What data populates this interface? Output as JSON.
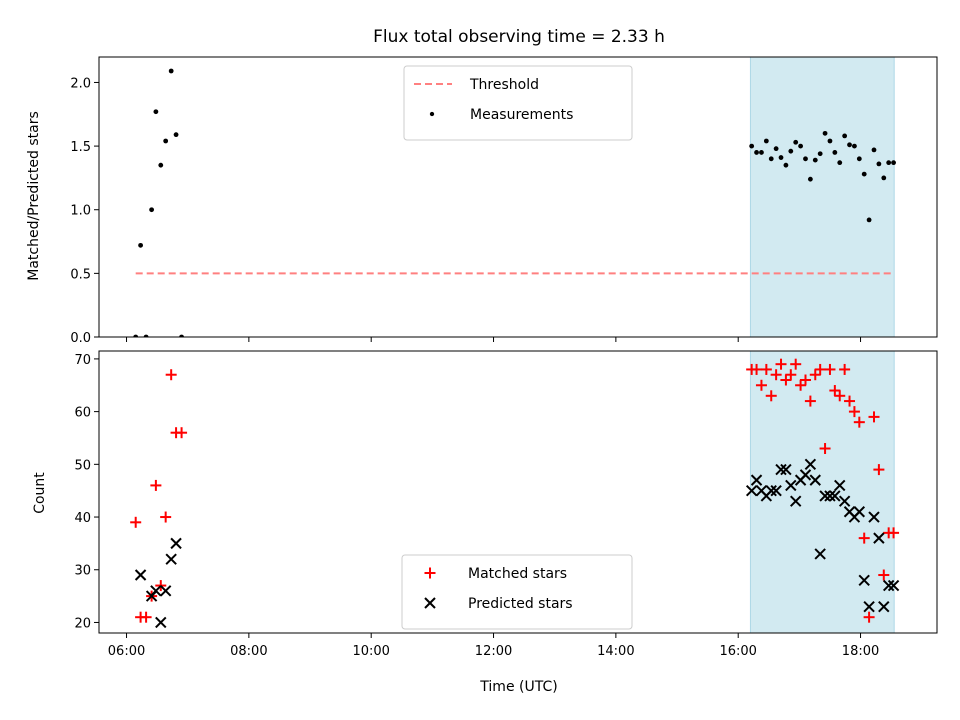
{
  "chart_data": {
    "title": "Flux total observing time = 2.33 h",
    "xlabel": "Time (UTC)",
    "x_unit": "hours UTC",
    "xlim": [
      5.55,
      19.25
    ],
    "x_ticks": [
      6,
      8,
      10,
      12,
      14,
      16,
      18
    ],
    "x_tick_labels": [
      "06:00",
      "08:00",
      "10:00",
      "12:00",
      "14:00",
      "16:00",
      "18:00"
    ],
    "shaded_region": {
      "x": [
        16.2,
        18.55
      ],
      "color": "#add8e6"
    },
    "panels": [
      {
        "type": "scatter",
        "ylabel": "Matched/Predicted stars",
        "ylim": [
          0,
          2.2
        ],
        "y_ticks": [
          0.0,
          0.5,
          1.0,
          1.5,
          2.0
        ],
        "y_tick_labels": [
          "0.0",
          "0.5",
          "1.0",
          "1.5",
          "2.0"
        ],
        "legend_position": "upper center",
        "threshold": {
          "name": "Threshold",
          "y": 0.5,
          "x_range": [
            6.15,
            18.5
          ],
          "color": "#ff8080",
          "style": "dashed"
        },
        "series": [
          {
            "name": "Measurements",
            "marker": "dot",
            "color": "#000000",
            "x": [
              6.15,
              6.23,
              6.32,
              6.41,
              6.48,
              6.56,
              6.64,
              6.73,
              6.81,
              6.9,
              16.22,
              16.3,
              16.38,
              16.46,
              16.54,
              16.62,
              16.7,
              16.78,
              16.86,
              16.94,
              17.02,
              17.1,
              17.18,
              17.26,
              17.34,
              17.42,
              17.5,
              17.58,
              17.66,
              17.74,
              17.82,
              17.9,
              17.98,
              18.06,
              18.14,
              18.22,
              18.3,
              18.38,
              18.46,
              18.54
            ],
            "y": [
              0.0,
              0.72,
              0.0,
              1.0,
              1.77,
              1.35,
              1.54,
              2.09,
              1.59,
              0.0,
              1.5,
              1.45,
              1.45,
              1.54,
              1.4,
              1.48,
              1.41,
              1.35,
              1.46,
              1.53,
              1.5,
              1.4,
              1.24,
              1.39,
              1.44,
              1.6,
              1.54,
              1.45,
              1.37,
              1.58,
              1.51,
              1.5,
              1.4,
              1.28,
              0.92,
              1.47,
              1.36,
              1.25,
              1.37,
              1.37
            ]
          }
        ]
      },
      {
        "type": "scatter",
        "ylabel": "Count",
        "ylim": [
          18,
          71.5
        ],
        "y_ticks": [
          20,
          30,
          40,
          50,
          60,
          70
        ],
        "y_tick_labels": [
          "20",
          "30",
          "40",
          "50",
          "60",
          "70"
        ],
        "legend_position": "lower center",
        "series": [
          {
            "name": "Matched stars",
            "marker": "plus",
            "color": "#ff0000",
            "x": [
              6.15,
              6.23,
              6.32,
              6.41,
              6.48,
              6.56,
              6.64,
              6.73,
              6.81,
              6.9,
              16.22,
              16.3,
              16.38,
              16.46,
              16.54,
              16.62,
              16.7,
              16.78,
              16.86,
              16.94,
              17.02,
              17.1,
              17.18,
              17.26,
              17.34,
              17.42,
              17.5,
              17.58,
              17.66,
              17.74,
              17.82,
              17.9,
              17.98,
              18.06,
              18.14,
              18.22,
              18.3,
              18.38,
              18.46,
              18.54
            ],
            "y": [
              39,
              21,
              21,
              25,
              46,
              27,
              40,
              67,
              56,
              56,
              68,
              68,
              65,
              68,
              63,
              67,
              69,
              66,
              67,
              69,
              65,
              66,
              62,
              67,
              68,
              53,
              68,
              64,
              63,
              68,
              62,
              60,
              58,
              36,
              21,
              59,
              49,
              29,
              37,
              37
            ]
          },
          {
            "name": "Predicted stars",
            "marker": "x",
            "color": "#000000",
            "x": [
              6.23,
              6.41,
              6.48,
              6.56,
              6.64,
              6.73,
              6.81,
              16.22,
              16.3,
              16.38,
              16.46,
              16.54,
              16.62,
              16.7,
              16.78,
              16.86,
              16.94,
              17.02,
              17.1,
              17.18,
              17.26,
              17.34,
              17.42,
              17.5,
              17.58,
              17.66,
              17.74,
              17.82,
              17.9,
              17.98,
              18.06,
              18.14,
              18.22,
              18.3,
              18.38,
              18.46,
              18.54
            ],
            "y": [
              29,
              25,
              26,
              20,
              26,
              32,
              35,
              45,
              47,
              45,
              44,
              45,
              45,
              49,
              49,
              46,
              43,
              47,
              48,
              50,
              47,
              33,
              44,
              44,
              44,
              46,
              43,
              41,
              40,
              41,
              28,
              23,
              40,
              36,
              23,
              27,
              27
            ]
          }
        ]
      }
    ]
  }
}
